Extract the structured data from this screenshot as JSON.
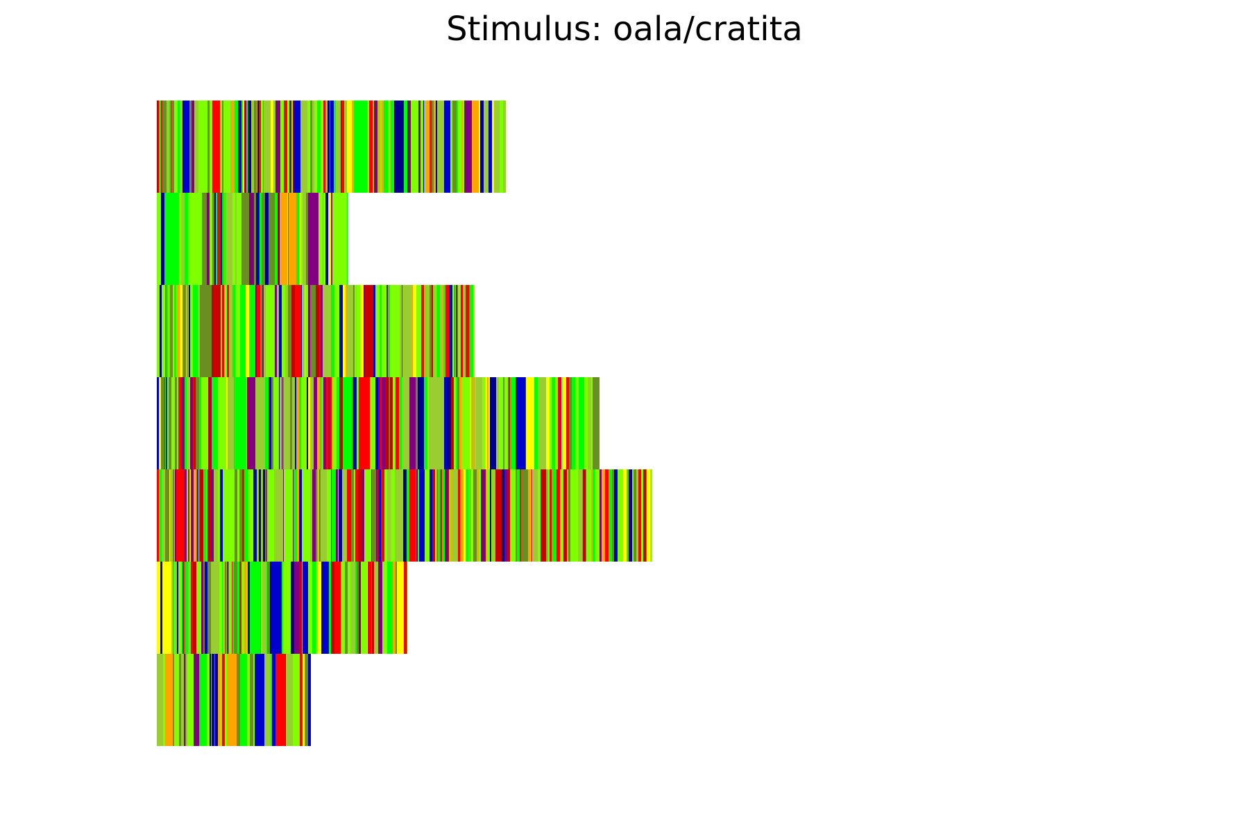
{
  "chart_data": {
    "type": "heatmap",
    "title": "Stimulus: oala/cratita",
    "xlabel": "",
    "ylabel": "",
    "axes_visible": false,
    "grid": false,
    "orientation": "horizontal",
    "row_count": 7,
    "row_lengths_relative": [
      0.705,
      0.385,
      0.642,
      0.894,
      1.0,
      0.505,
      0.311
    ],
    "palette": [
      "#FFA500",
      "#FFFF00",
      "#7FFF00",
      "#00FF00",
      "#6B8E23",
      "#C80000",
      "#FF0000",
      "#800080",
      "#0000CD",
      "#00008B",
      "#9ACD32"
    ],
    "palette_weights": [
      5,
      5,
      22,
      12,
      14,
      4,
      6,
      8,
      6,
      3,
      15
    ],
    "colors_that_matter": {
      "background": "#FFFFFF",
      "title": "#000000"
    }
  }
}
